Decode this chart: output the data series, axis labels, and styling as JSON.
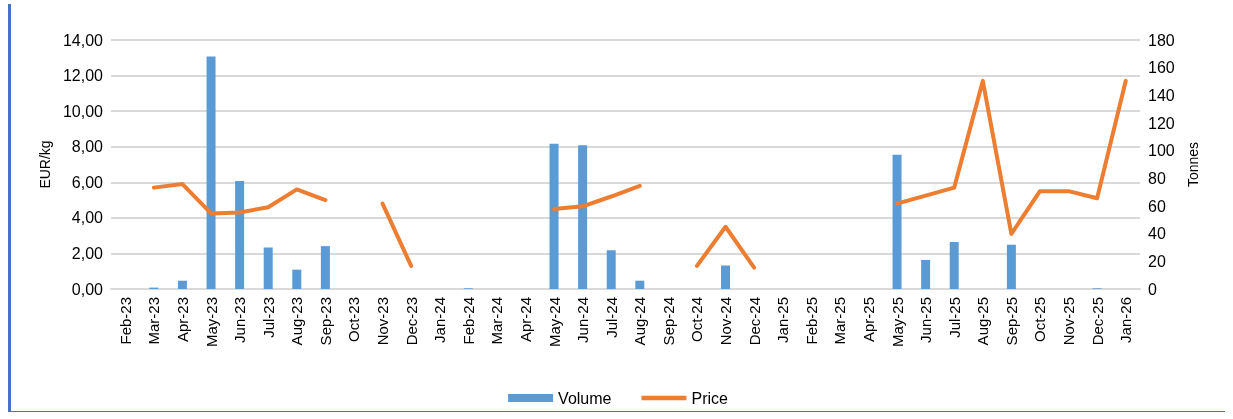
{
  "chart_data": {
    "type": "bar",
    "ylabel": "EUR/kg",
    "y2label": "Tonnes",
    "categories": [
      "Feb-23",
      "Mar-23",
      "Apr-23",
      "May-23",
      "Jun-23",
      "Jul-23",
      "Aug-23",
      "Sep-23",
      "Oct-23",
      "Nov-23",
      "Dec-23",
      "Jan-24",
      "Feb-24",
      "Mar-24",
      "Apr-24",
      "May-24",
      "Jun-24",
      "Jul-24",
      "Aug-24",
      "Sep-24",
      "Oct-24",
      "Nov-24",
      "Dec-24",
      "Jan-25",
      "Feb-25",
      "Mar-25",
      "Apr-25",
      "May-25",
      "Jun-25",
      "Jul-25",
      "Aug-25",
      "Sep-25",
      "Oct-25",
      "Nov-25",
      "Dec-25",
      "Jan-26"
    ],
    "series": [
      {
        "name": "Volume",
        "axis": "y2",
        "color": "#5b9bd5",
        "values": [
          null,
          1,
          6,
          168,
          78,
          30,
          14,
          31,
          null,
          null,
          null,
          null,
          0.5,
          null,
          null,
          105,
          104,
          28,
          6,
          null,
          null,
          17,
          null,
          null,
          null,
          null,
          null,
          97,
          21,
          34,
          null,
          32,
          null,
          null,
          0.5,
          null
        ]
      },
      {
        "name": "Price",
        "type": "line",
        "color": "#ed7d31",
        "values": [
          null,
          5.7,
          5.9,
          4.25,
          4.3,
          4.6,
          5.6,
          5.0,
          null,
          4.8,
          1.3,
          null,
          null,
          null,
          null,
          4.5,
          4.65,
          5.2,
          5.8,
          null,
          1.3,
          3.5,
          1.2,
          null,
          null,
          null,
          null,
          4.8,
          5.25,
          5.7,
          11.7,
          3.1,
          5.5,
          5.5,
          5.1,
          11.7
        ]
      }
    ],
    "ylim": [
      0,
      14
    ],
    "yticks": [
      {
        "value": 0,
        "label": "0,00"
      },
      {
        "value": 2,
        "label": "2,00"
      },
      {
        "value": 4,
        "label": "4,00"
      },
      {
        "value": 6,
        "label": "6,00"
      },
      {
        "value": 8,
        "label": "8,00"
      },
      {
        "value": 10,
        "label": "10,00"
      },
      {
        "value": 12,
        "label": "12,00"
      },
      {
        "value": 14,
        "label": "14,00"
      }
    ],
    "y2lim": [
      0,
      180
    ],
    "y2ticks": [
      0,
      20,
      40,
      60,
      80,
      100,
      120,
      140,
      160,
      180
    ],
    "grid": "y",
    "legend": "bottom",
    "marker": "none",
    "line_style": "solid"
  }
}
